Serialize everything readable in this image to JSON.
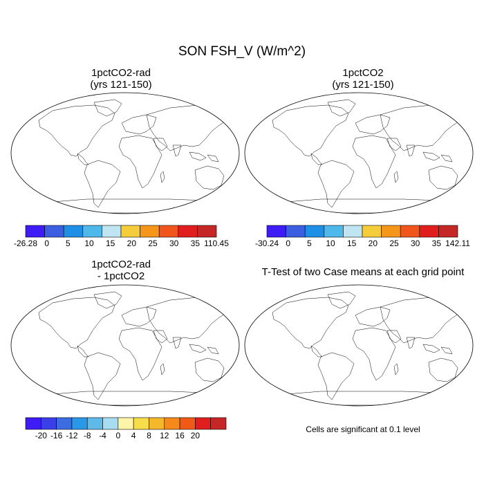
{
  "title": "SON FSH_V (W/m^2)",
  "panels": [
    {
      "id": "p1",
      "title_line1": "1pctCO2-rad",
      "title_line2": "(yrs 121-150)",
      "style": "abs",
      "intensity": 0.85
    },
    {
      "id": "p2",
      "title_line1": "1pctCO2",
      "title_line2": "(yrs 121-150)",
      "style": "abs",
      "intensity": 1.0
    },
    {
      "id": "p3",
      "title_line1": "1pctCO2-rad",
      "title_line2": "- 1pctCO2",
      "style": "diff",
      "intensity": 1.0
    },
    {
      "id": "p4",
      "title_line1": "T-Test of two Case means at each grid point",
      "title_line2": "",
      "style": "sig",
      "intensity": 1.0
    }
  ],
  "colorbars": [
    {
      "id": "cb1",
      "colors": [
        "#3d1cf5",
        "#3b5fe0",
        "#1e8fe6",
        "#4fb8eb",
        "#bfe4f2",
        "#f5cc3a",
        "#f5951a",
        "#f0561c",
        "#e01e1e",
        "#c52626"
      ],
      "labels": [
        "-26.28",
        "0",
        "5",
        "10",
        "15",
        "20",
        "25",
        "30",
        "35",
        "110.45"
      ]
    },
    {
      "id": "cb2",
      "colors": [
        "#3d1cf5",
        "#3b5fe0",
        "#1e8fe6",
        "#4fb8eb",
        "#bfe4f2",
        "#f5cc3a",
        "#f5951a",
        "#f0561c",
        "#e01e1e",
        "#c52626"
      ],
      "labels": [
        "-30.24",
        "0",
        "5",
        "10",
        "15",
        "20",
        "25",
        "30",
        "35",
        "142.11"
      ]
    },
    {
      "id": "cb3",
      "colors": [
        "#3d1cf5",
        "#3b3fe8",
        "#3b6ce0",
        "#2a98e8",
        "#5fbaea",
        "#a8dcf0",
        "#fff5a8",
        "#f8dd4a",
        "#f5b82a",
        "#f58a1a",
        "#f05a16",
        "#e01e1e",
        "#c52626"
      ],
      "labels": [
        "-20",
        "-16",
        "-12",
        "-8",
        "-4",
        "0",
        "4",
        "8",
        "12",
        "16",
        "20"
      ]
    }
  ],
  "note": "Cells are significant at 0.1 level"
}
